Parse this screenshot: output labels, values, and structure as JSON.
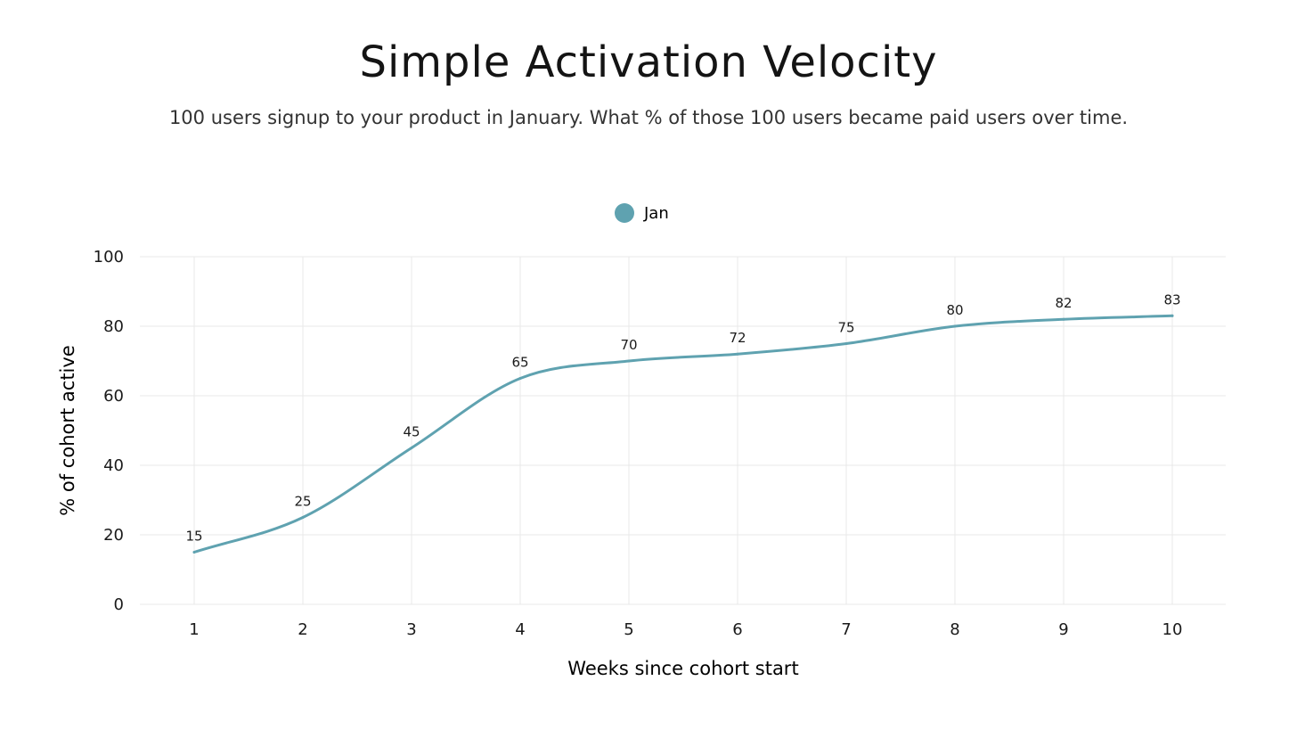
{
  "title": "Simple Activation Velocity",
  "subtitle": "100 users signup to your product in January. What % of those 100 users became paid users over time.",
  "colors": {
    "series": "#5fa2b0",
    "grid": "#e8e8e8",
    "text": "#1a1a1a"
  },
  "chart_data": {
    "type": "line",
    "x": [
      1,
      2,
      3,
      4,
      5,
      6,
      7,
      8,
      9,
      10
    ],
    "x_tick_labels": [
      "1",
      "2",
      "3",
      "4",
      "5",
      "6",
      "7",
      "8",
      "9",
      "10"
    ],
    "y_tick_labels": [
      "0",
      "20",
      "40",
      "60",
      "80",
      "100"
    ],
    "series": [
      {
        "name": "Jan",
        "values": [
          15,
          25,
          45,
          65,
          70,
          72,
          75,
          80,
          82,
          83
        ],
        "data_labels": [
          "15",
          "25",
          "45",
          "65",
          "70",
          "72",
          "75",
          "80",
          "82",
          "83"
        ]
      }
    ],
    "xlabel": "Weeks since cohort start",
    "ylabel": "% of cohort active",
    "ylim": [
      0,
      100
    ],
    "yticks": [
      0,
      20,
      40,
      60,
      80,
      100
    ],
    "grid": true,
    "legend": "top-center",
    "smooth": true
  }
}
